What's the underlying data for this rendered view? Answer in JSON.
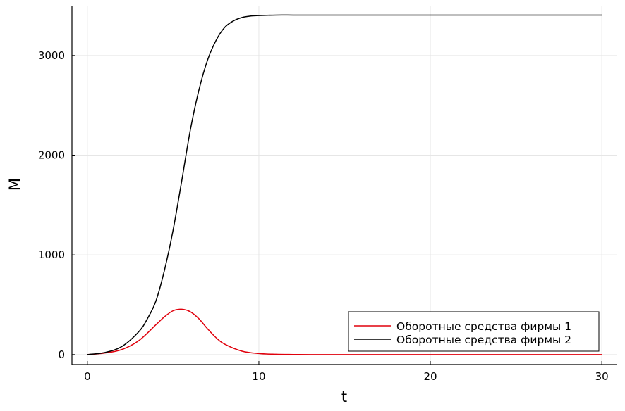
{
  "chart_data": {
    "type": "line",
    "xlabel": "t",
    "ylabel": "M",
    "xlim": [
      -0.9,
      30.9
    ],
    "ylim": [
      -100,
      3500
    ],
    "xticks": [
      0,
      10,
      20,
      30
    ],
    "xtick_labels": [
      "0",
      "10",
      "20",
      "30"
    ],
    "yticks": [
      0,
      1000,
      2000,
      3000
    ],
    "ytick_labels": [
      "0",
      "1000",
      "2000",
      "3000"
    ],
    "grid": true,
    "legend_position": "bottom-right",
    "colors": {
      "series1": "#e0000c",
      "series2": "#000000"
    },
    "series": [
      {
        "name": "Оборотные средства фирмы 1",
        "x": [
          0,
          1,
          2,
          3,
          4,
          4.5,
          5,
          5.5,
          6,
          6.5,
          7,
          7.5,
          8,
          9,
          10,
          11,
          12,
          13,
          15,
          20,
          25,
          30
        ],
        "y": [
          0,
          15,
          50,
          140,
          300,
          380,
          440,
          455,
          430,
          360,
          260,
          170,
          105,
          35,
          10,
          3,
          1,
          0,
          0,
          0,
          0,
          0
        ]
      },
      {
        "name": "Оборотные средства фирмы 2",
        "x": [
          0,
          1,
          2,
          3,
          3.5,
          4,
          4.5,
          5,
          5.5,
          6,
          6.5,
          7,
          7.5,
          8,
          8.5,
          9,
          9.5,
          10,
          11,
          12,
          13,
          15,
          20,
          25,
          30
        ],
        "y": [
          0,
          20,
          80,
          230,
          360,
          540,
          850,
          1250,
          1740,
          2250,
          2650,
          2950,
          3150,
          3280,
          3345,
          3380,
          3395,
          3400,
          3405,
          3405,
          3405,
          3405,
          3405,
          3405,
          3405
        ]
      }
    ]
  }
}
